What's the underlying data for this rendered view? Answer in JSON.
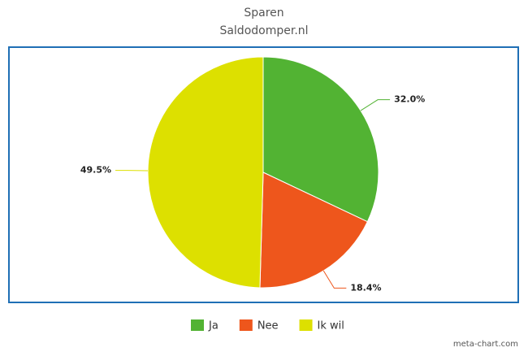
{
  "chart_data": {
    "type": "pie",
    "title": "Sparen",
    "subtitle": "Saldodomper.nl",
    "categories": [
      "Ja",
      "Nee",
      "Ik wil"
    ],
    "values": [
      32.0,
      18.4,
      49.5
    ],
    "value_labels": [
      "32.0%",
      "18.4%",
      "49.5%"
    ],
    "colors": [
      "#52b333",
      "#ee561c",
      "#dde000"
    ],
    "credit": "meta-chart.com"
  }
}
